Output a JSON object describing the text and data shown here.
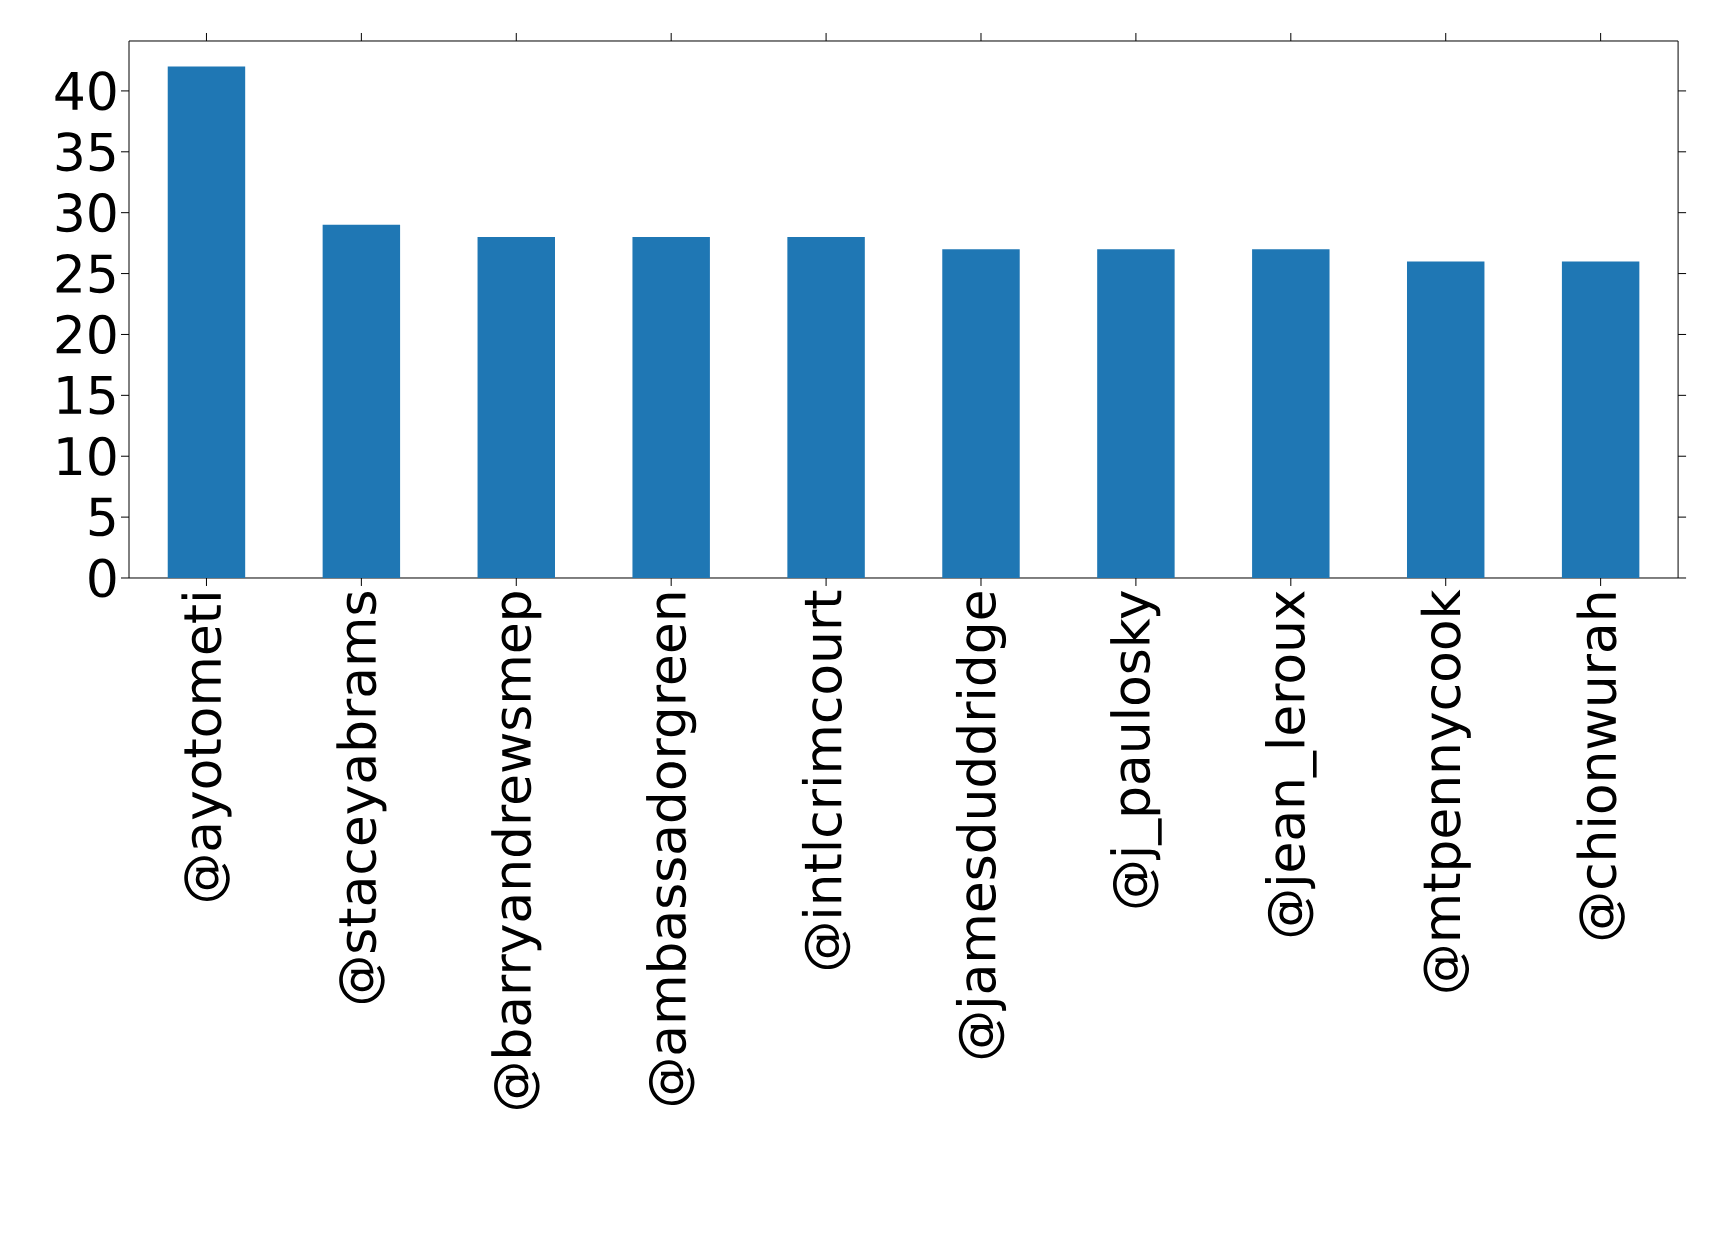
{
  "chart_data": {
    "type": "bar",
    "categories": [
      "@ayotometi",
      "@staceyabrams",
      "@barryandrewsmep",
      "@ambassadorgreen",
      "@intlcrimcourt",
      "@jamesduddridge",
      "@j_paulosky",
      "@jean_leroux",
      "@mtpennycook",
      "@chionwurah"
    ],
    "values": [
      42,
      29,
      28,
      28,
      28,
      27,
      27,
      27,
      26,
      26
    ],
    "color": "#1f77b4",
    "ylim": [
      0,
      44.1
    ],
    "yticks": [
      0,
      5,
      10,
      15,
      20,
      25,
      30,
      35,
      40
    ]
  }
}
